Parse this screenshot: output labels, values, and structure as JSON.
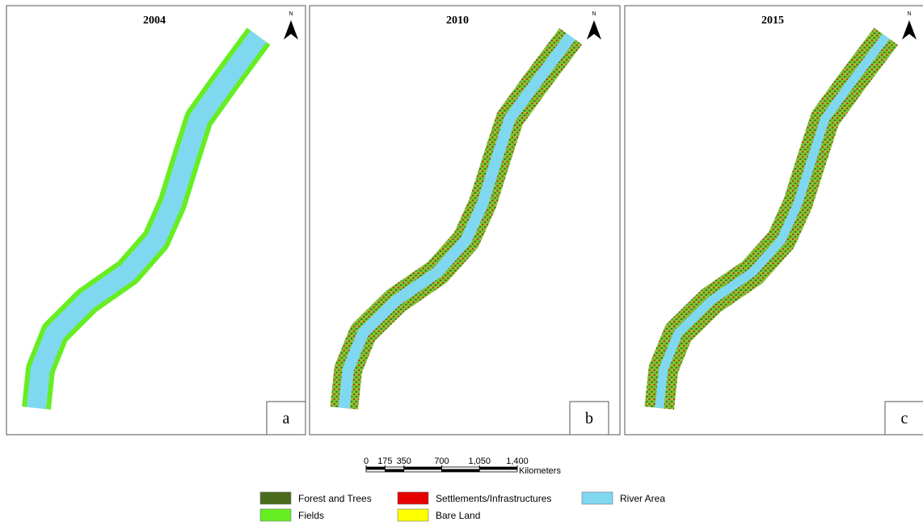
{
  "panels": [
    {
      "year": "2004",
      "label": "a",
      "north": "N"
    },
    {
      "year": "2010",
      "label": "b",
      "north": "N"
    },
    {
      "year": "2015",
      "label": "c",
      "north": "N"
    }
  ],
  "scale_bar": {
    "ticks": [
      0,
      175,
      350,
      700,
      {
        "value": 1050,
        "label": "1,050"
      },
      {
        "value": 1400,
        "label": "1,400"
      }
    ],
    "unit": "Kilometers"
  },
  "legend": [
    {
      "label": "Forest and Trees",
      "color": "#4a6b1c"
    },
    {
      "label": "Settlements/Infrastructures",
      "color": "#e60000"
    },
    {
      "label": "River Area",
      "color": "#80d8f0"
    },
    {
      "label": "Fields",
      "color": "#66ee22"
    },
    {
      "label": "Bare Land",
      "color": "#ffff00"
    }
  ]
}
